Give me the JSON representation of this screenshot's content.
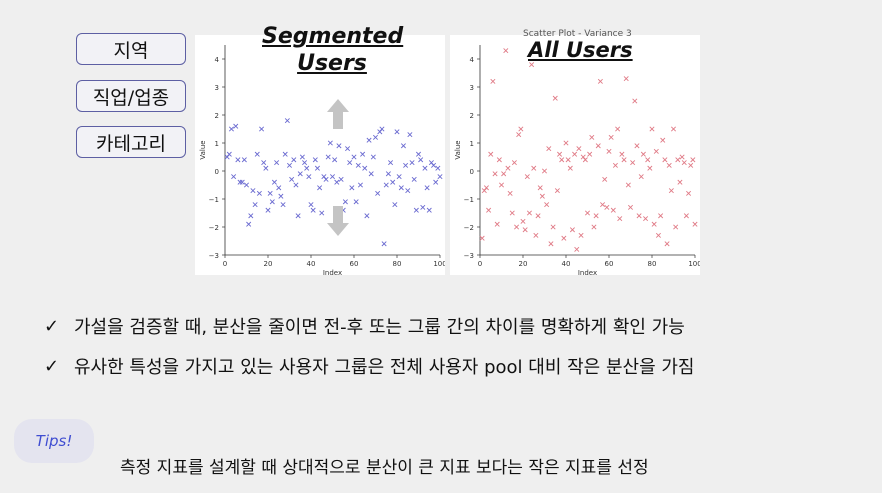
{
  "tags": [
    "지역",
    "직업/업종",
    "카테고리"
  ],
  "left_chart_heading": [
    "Segmented",
    "Users"
  ],
  "right_chart_heading": "All Users",
  "right_chart_subtitle": "Scatter Plot - Variance 3",
  "colors": {
    "left_marker": "#6a6ad0",
    "right_marker": "#e07a86",
    "tips_text": "#3f4dd1"
  },
  "arrows": {
    "up": "arrow-up-icon",
    "down": "arrow-down-icon"
  },
  "chart_data": [
    {
      "type": "scatter",
      "title": "",
      "xlabel": "Index",
      "ylabel": "Value",
      "xlim": [
        0,
        100
      ],
      "ylim": [
        -3,
        4.5
      ],
      "xticks": [
        0,
        20,
        40,
        60,
        80,
        100
      ],
      "yticks": [
        -3,
        -2,
        -1,
        0,
        1,
        2,
        3,
        4
      ],
      "series": [
        {
          "marker": "x",
          "x": [
            1,
            2,
            3,
            4,
            5,
            6,
            7,
            8,
            9,
            10,
            11,
            12,
            13,
            14,
            15,
            16,
            17,
            18,
            19,
            20,
            21,
            22,
            23,
            24,
            25,
            26,
            27,
            28,
            29,
            30,
            31,
            32,
            33,
            34,
            35,
            36,
            37,
            38,
            39,
            40,
            41,
            42,
            43,
            44,
            45,
            46,
            47,
            48,
            49,
            50,
            51,
            52,
            53,
            54,
            55,
            56,
            57,
            58,
            59,
            60,
            61,
            62,
            63,
            64,
            65,
            66,
            67,
            68,
            69,
            70,
            71,
            72,
            73,
            74,
            75,
            76,
            77,
            78,
            79,
            80,
            81,
            82,
            83,
            84,
            85,
            86,
            87,
            88,
            89,
            90,
            91,
            92,
            93,
            94,
            95,
            96,
            97,
            98,
            99,
            100
          ],
          "y": [
            0.5,
            0.6,
            1.5,
            -0.2,
            1.6,
            0.4,
            -0.4,
            -0.4,
            0.4,
            -0.5,
            -1.9,
            -1.6,
            -0.7,
            -1.2,
            0.6,
            -0.8,
            1.5,
            0.3,
            0.1,
            -1.4,
            -0.8,
            -1.1,
            -0.4,
            0.3,
            -0.6,
            -0.9,
            -1.2,
            0.6,
            1.8,
            0.2,
            -0.3,
            0.4,
            -0.5,
            -1.6,
            -0.1,
            0.5,
            0.3,
            0.1,
            -0.2,
            -1.2,
            -1.4,
            0.4,
            0.1,
            -0.6,
            -1.5,
            -0.2,
            -0.3,
            0.5,
            1.0,
            -0.2,
            0.4,
            -0.4,
            0.9,
            -0.3,
            -1.4,
            -1.1,
            0.8,
            0.3,
            -0.6,
            0.5,
            -1.1,
            0.2,
            -0.5,
            0.6,
            0.1,
            -1.6,
            1.1,
            -0.1,
            0.5,
            1.2,
            -0.8,
            1.4,
            1.5,
            -2.6,
            -0.5,
            -0.1,
            0.3,
            -0.4,
            -1.2,
            1.4,
            -0.2,
            -0.6,
            0.9,
            0.2,
            -0.7,
            1.3,
            0.3,
            -0.3,
            -1.4,
            0.6,
            0.4,
            -1.3,
            0.1,
            -0.6,
            -1.4,
            0.3,
            0.2,
            -0.4,
            0.1,
            -0.2
          ]
        }
      ]
    },
    {
      "type": "scatter",
      "title": "Scatter Plot - Variance 3",
      "xlabel": "Index",
      "ylabel": "Value",
      "xlim": [
        0,
        100
      ],
      "ylim": [
        -3,
        4.5
      ],
      "xticks": [
        0,
        20,
        40,
        60,
        80,
        100
      ],
      "yticks": [
        -3,
        -2,
        -1,
        0,
        1,
        2,
        3,
        4
      ],
      "series": [
        {
          "marker": "x",
          "x": [
            1,
            2,
            3,
            4,
            5,
            6,
            7,
            8,
            9,
            10,
            11,
            12,
            13,
            14,
            15,
            16,
            17,
            18,
            19,
            20,
            21,
            22,
            23,
            24,
            25,
            26,
            27,
            28,
            29,
            30,
            31,
            32,
            33,
            34,
            35,
            36,
            37,
            38,
            39,
            40,
            41,
            42,
            43,
            44,
            45,
            46,
            47,
            48,
            49,
            50,
            51,
            52,
            53,
            54,
            55,
            56,
            57,
            58,
            59,
            60,
            61,
            62,
            63,
            64,
            65,
            66,
            67,
            68,
            69,
            70,
            71,
            72,
            73,
            74,
            75,
            76,
            77,
            78,
            79,
            80,
            81,
            82,
            83,
            84,
            85,
            86,
            87,
            88,
            89,
            90,
            91,
            92,
            93,
            94,
            95,
            96,
            97,
            98,
            99,
            100
          ],
          "y": [
            -2.4,
            -0.7,
            -0.6,
            -1.4,
            0.6,
            3.2,
            -0.1,
            -1.9,
            0.4,
            -0.5,
            -0.1,
            4.3,
            0.1,
            -0.8,
            -1.5,
            0.3,
            -2.0,
            1.3,
            1.5,
            -1.8,
            -2.1,
            -0.2,
            -1.5,
            3.8,
            0.1,
            -2.3,
            -1.6,
            -0.6,
            -0.9,
            0.0,
            -1.2,
            0.8,
            -2.6,
            -2.0,
            2.6,
            -0.7,
            0.6,
            0.4,
            -2.4,
            1.0,
            0.4,
            0.1,
            -2.1,
            0.6,
            -2.8,
            0.8,
            -2.3,
            0.5,
            0.4,
            -1.5,
            0.6,
            1.2,
            -2.0,
            -1.6,
            0.9,
            3.2,
            -1.2,
            -0.3,
            -1.3,
            0.7,
            1.2,
            -1.4,
            0.2,
            1.5,
            -1.7,
            0.6,
            0.4,
            3.3,
            -0.5,
            -1.3,
            0.3,
            2.5,
            0.9,
            -1.6,
            -0.2,
            0.6,
            -1.7,
            0.4,
            0.1,
            1.5,
            -1.9,
            0.7,
            -2.3,
            -1.6,
            1.1,
            0.4,
            -2.6,
            0.2,
            -0.7,
            1.5,
            -2.0,
            0.4,
            -0.4,
            0.5,
            0.3,
            -1.6,
            -0.8,
            0.2,
            0.4,
            -1.9
          ]
        }
      ]
    }
  ],
  "bullets": [
    {
      "check": "✓",
      "text": "가설을 검증할 때, 분산을 줄이면 전-후 또는 그룹 간의 차이를 명확하게 확인 가능"
    },
    {
      "check": "✓",
      "text": "유사한 특성을 가지고 있는 사용자 그룹은 전체 사용자 pool 대비 작은 분산을 가짐"
    }
  ],
  "tips_label": "Tips!",
  "tip_text": "측정 지표를 설계할 때 상대적으로 분산이 큰 지표 보다는 작은 지표를 선정"
}
